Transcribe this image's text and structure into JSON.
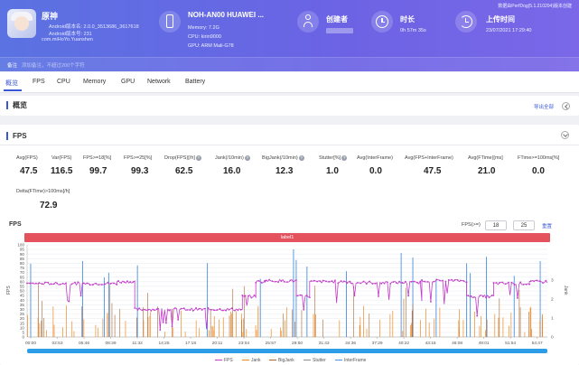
{
  "header": {
    "app": {
      "name": "原神",
      "android_version": "Android版本名: 2.0.0_3513686_3617618",
      "android_code": "Android版本号: 231",
      "package": "com.miHoYo.Yuanshen"
    },
    "device": {
      "title": "NOH-AN00 HUAWEI ...",
      "memory": "Memory: 7.2G",
      "cpu": "CPU: kirin9000",
      "gpu": "GPU: ARM Mali-G78"
    },
    "creator": {
      "title": "创建者",
      "value": ""
    },
    "duration": {
      "title": "时长",
      "value": "0h 57m 35s"
    },
    "upload": {
      "title": "上传时间",
      "value": "23/07/2021 17:29:40"
    },
    "version_note": "数据由PerfDog(5.1.210204)版本创建",
    "note_label": "备注",
    "note_placeholder": "添加备注，不超过200个字符"
  },
  "tabs": [
    "概览",
    "FPS",
    "CPU",
    "Memory",
    "GPU",
    "Network",
    "Battery"
  ],
  "overview": {
    "title": "概览",
    "export": "导出全部"
  },
  "fps_section": {
    "title": "FPS",
    "metrics_row1": [
      {
        "label": "Avg(FPS)",
        "value": "47.5",
        "help": false
      },
      {
        "label": "Var(FPS)",
        "value": "116.5",
        "help": false
      },
      {
        "label": "FPS>=18[%]",
        "value": "99.7",
        "help": false
      },
      {
        "label": "FPS>=25[%]",
        "value": "99.3",
        "help": false
      },
      {
        "label": "Drop(FPS)[/h]",
        "value": "62.5",
        "help": true
      },
      {
        "label": "Jank(/10min)",
        "value": "16.0",
        "help": true
      },
      {
        "label": "BigJank(/10min)",
        "value": "12.3",
        "help": true
      },
      {
        "label": "Stutter[%]",
        "value": "1.0",
        "help": true
      },
      {
        "label": "Avg(InterFrame)",
        "value": "0.0",
        "help": false
      },
      {
        "label": "Avg(FPS+InterFrame)",
        "value": "47.5",
        "help": false
      },
      {
        "label": "Avg(FTime)[ms]",
        "value": "21.0",
        "help": false
      },
      {
        "label": "FTime>=100ms[%]",
        "value": "0.0",
        "help": false
      }
    ],
    "metrics_row2": [
      {
        "label": "Delta(FTime)>100ms[/h]",
        "value": "72.9",
        "help": false
      }
    ]
  },
  "chart_header": {
    "title": "FPS",
    "threshold_label": "FPS(>=)",
    "threshold_1": "18",
    "threshold_2": "25",
    "reset": "重置"
  },
  "chart_data": {
    "type": "line",
    "title": "FPS",
    "label_band": "label1",
    "ylabel_left": "FPS",
    "ylabel_right": "Jank",
    "ylim": [
      0,
      100
    ],
    "yticks_left": [
      "0",
      "5",
      "10",
      "15",
      "20",
      "25",
      "30",
      "35",
      "40",
      "45",
      "50",
      "55",
      "60",
      "65",
      "70",
      "75",
      "80",
      "85",
      "90",
      "95",
      "100"
    ],
    "yticks_right": [
      "0",
      "1",
      "2",
      "3"
    ],
    "x_ticks": [
      "00:00",
      "02:53",
      "05:46",
      "08:39",
      "11:32",
      "14:25",
      "17:18",
      "20:11",
      "23:04",
      "25:57",
      "28:50",
      "31:43",
      "34:36",
      "37:29",
      "40:22",
      "43:15",
      "46:08",
      "49:01",
      "51:54",
      "54:47"
    ],
    "series": [
      {
        "name": "FPS",
        "color": "#c23bc9"
      },
      {
        "name": "Jank",
        "color": "#f08a24"
      },
      {
        "name": "BigJank",
        "color": "#a5652f"
      },
      {
        "name": "Stutter",
        "color": "#8e8e8e"
      },
      {
        "name": "InterFrame",
        "color": "#4a90e2"
      }
    ],
    "fps_segments": [
      {
        "start": 0,
        "end": 10,
        "fps": 58
      },
      {
        "start": 10,
        "end": 12,
        "fps": 60
      },
      {
        "start": 12,
        "end": 12.5,
        "fps": 30
      },
      {
        "start": 12.5,
        "end": 24,
        "fps": 30
      },
      {
        "start": 24,
        "end": 25.5,
        "fps": 44
      },
      {
        "start": 25.5,
        "end": 26.5,
        "fps": 60
      },
      {
        "start": 26.5,
        "end": 30,
        "fps": 61
      },
      {
        "start": 30,
        "end": 31.5,
        "fps": 44
      },
      {
        "start": 31.5,
        "end": 36,
        "fps": 60
      },
      {
        "start": 36,
        "end": 44,
        "fps": 59
      },
      {
        "start": 44,
        "end": 49,
        "fps": 61
      },
      {
        "start": 49,
        "end": 52,
        "fps": 44
      },
      {
        "start": 52,
        "end": 56,
        "fps": 58
      },
      {
        "start": 56,
        "end": 58,
        "fps": 60
      }
    ]
  },
  "legend": [
    "FPS",
    "Jank",
    "BigJank",
    "Stutter",
    "InterFrame"
  ]
}
